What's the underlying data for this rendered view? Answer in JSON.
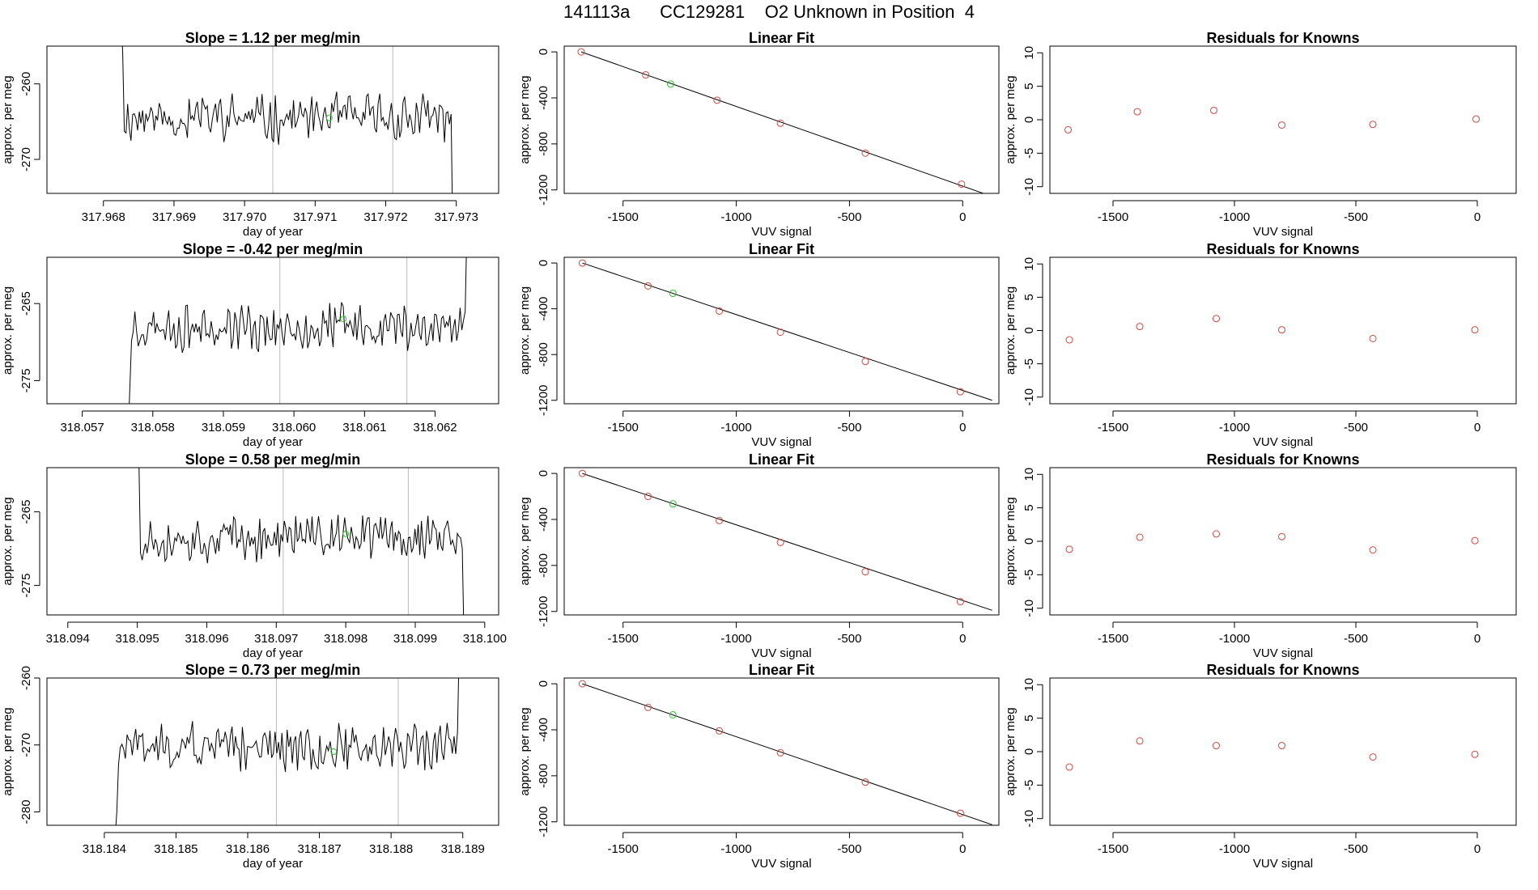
{
  "figure": {
    "title": "141113a      CC129281    O2 Unknown in Position  4"
  },
  "chart_data": [
    {
      "type": "line",
      "title": "Slope =  1.12  per meg/min",
      "xlabel": "day of year",
      "ylabel": "approx. per meg",
      "xlim": [
        317.9672,
        317.9736
      ],
      "ylim": [
        -274.5,
        -255
      ],
      "xticks": [
        317.968,
        317.969,
        317.97,
        317.971,
        317.972,
        317.973
      ],
      "xtick_labels": [
        "317.968",
        "317.969",
        "317.970",
        "317.971",
        "317.972",
        "317.973"
      ],
      "yticks": [
        -260,
        -270
      ],
      "ytick_labels": [
        "-260",
        "-270"
      ],
      "vlines": [
        317.9704,
        317.9721
      ],
      "x_start": 317.96825,
      "x_end": 317.97295,
      "level": -264.5,
      "lead": [
        -250,
        -256
      ],
      "tail": [
        -264,
        -280
      ],
      "green_point": [
        317.9712,
        -264.5
      ],
      "seed": 11
    },
    {
      "type": "line",
      "title": "Slope =  -0.42  per meg/min",
      "xlabel": "day of year",
      "ylabel": "approx. per meg",
      "xlim": [
        318.0565,
        318.0629
      ],
      "ylim": [
        -278,
        -259
      ],
      "xticks": [
        318.057,
        318.058,
        318.059,
        318.06,
        318.061,
        318.062
      ],
      "xtick_labels": [
        "318.057",
        "318.058",
        "318.059",
        "318.060",
        "318.061",
        "318.062"
      ],
      "yticks": [
        -265,
        -275
      ],
      "ytick_labels": [
        "-265",
        "-275"
      ],
      "vlines": [
        318.0598,
        318.0616
      ],
      "x_start": 318.05765,
      "x_end": 318.06245,
      "level": -268,
      "lead": [
        -282,
        -276
      ],
      "tail": [
        -266,
        -255
      ],
      "green_point": [
        318.0607,
        -267
      ],
      "seed": 23
    },
    {
      "type": "line",
      "title": "Slope =  0.58  per meg/min",
      "xlabel": "day of year",
      "ylabel": "approx. per meg",
      "xlim": [
        318.0937,
        318.1002
      ],
      "ylim": [
        -279,
        -259
      ],
      "xticks": [
        318.094,
        318.095,
        318.096,
        318.097,
        318.098,
        318.099,
        318.1
      ],
      "xtick_labels": [
        "318.094",
        "318.095",
        "318.096",
        "318.097",
        "318.098",
        "318.099",
        "318.100"
      ],
      "yticks": [
        -265,
        -275
      ],
      "ytick_labels": [
        "-265",
        "-275"
      ],
      "vlines": [
        318.0971,
        318.0989
      ],
      "x_start": 318.095,
      "x_end": 318.0997,
      "level": -268.5,
      "lead": [
        -252,
        -258
      ],
      "tail": [
        -270,
        -282
      ],
      "green_point": [
        318.098,
        -268
      ],
      "seed": 37
    },
    {
      "type": "line",
      "title": "Slope =  0.73  per meg/min",
      "xlabel": "day of year",
      "ylabel": "approx. per meg",
      "xlim": [
        318.1832,
        318.1895
      ],
      "ylim": [
        -282,
        -260
      ],
      "xticks": [
        318.184,
        318.185,
        318.186,
        318.187,
        318.188,
        318.189
      ],
      "xtick_labels": [
        "318.184",
        "318.185",
        "318.186",
        "318.187",
        "318.188",
        "318.189"
      ],
      "yticks": [
        -260,
        -270,
        -280
      ],
      "ytick_labels": [
        "-260",
        "-270",
        "-280"
      ],
      "vlines": [
        318.1864,
        318.1881
      ],
      "x_start": 318.18415,
      "x_end": 318.18895,
      "level": -270.5,
      "lead": [
        -284,
        -280
      ],
      "tail": [
        -268,
        -255
      ],
      "green_point": [
        318.1872,
        -271
      ],
      "seed": 51
    },
    {
      "type": "scatter",
      "title": "Linear Fit",
      "xlabel": "VUV signal",
      "ylabel": "approx. per meg",
      "xlim": [
        -1760,
        160
      ],
      "ylim": [
        -1230,
        50
      ],
      "xticks": [
        -1500,
        -1000,
        -500,
        0
      ],
      "xtick_labels": [
        "-1500",
        "-1000",
        "-500",
        "0"
      ],
      "yticks": [
        0,
        -400,
        -800,
        -1200
      ],
      "ytick_labels": [
        "0",
        "-400",
        "-800",
        "-1200"
      ],
      "red_points": [
        [
          -1685,
          0
        ],
        [
          -1400,
          -200
        ],
        [
          -1085,
          -420
        ],
        [
          -805,
          -620
        ],
        [
          -430,
          -880
        ],
        [
          -5,
          -1150
        ]
      ],
      "green_point": [
        -1290,
        -280
      ],
      "fit_line": [
        [
          -1685,
          0
        ],
        [
          120,
          -1250
        ]
      ]
    },
    {
      "type": "scatter",
      "title": "Linear Fit",
      "xlabel": "VUV signal",
      "ylabel": "approx. per meg",
      "xlim": [
        -1760,
        160
      ],
      "ylim": [
        -1230,
        50
      ],
      "xticks": [
        -1500,
        -1000,
        -500,
        0
      ],
      "xtick_labels": [
        "-1500",
        "-1000",
        "-500",
        "0"
      ],
      "yticks": [
        0,
        -400,
        -800,
        -1200
      ],
      "ytick_labels": [
        "0",
        "-400",
        "-800",
        "-1200"
      ],
      "red_points": [
        [
          -1680,
          0
        ],
        [
          -1390,
          -200
        ],
        [
          -1075,
          -420
        ],
        [
          -805,
          -605
        ],
        [
          -430,
          -860
        ],
        [
          -10,
          -1125
        ]
      ],
      "green_point": [
        -1280,
        -265
      ],
      "fit_line": [
        [
          -1680,
          0
        ],
        [
          130,
          -1200
        ]
      ]
    },
    {
      "type": "scatter",
      "title": "Linear Fit",
      "xlabel": "VUV signal",
      "ylabel": "approx. per meg",
      "xlim": [
        -1760,
        160
      ],
      "ylim": [
        -1230,
        50
      ],
      "xticks": [
        -1500,
        -1000,
        -500,
        0
      ],
      "xtick_labels": [
        "-1500",
        "-1000",
        "-500",
        "0"
      ],
      "yticks": [
        0,
        -400,
        -800,
        -1200
      ],
      "ytick_labels": [
        "0",
        "-400",
        "-800",
        "-1200"
      ],
      "red_points": [
        [
          -1680,
          0
        ],
        [
          -1390,
          -200
        ],
        [
          -1075,
          -410
        ],
        [
          -805,
          -600
        ],
        [
          -430,
          -855
        ],
        [
          -10,
          -1115
        ]
      ],
      "green_point": [
        -1280,
        -265
      ],
      "fit_line": [
        [
          -1680,
          0
        ],
        [
          130,
          -1190
        ]
      ]
    },
    {
      "type": "scatter",
      "title": "Linear Fit",
      "xlabel": "VUV signal",
      "ylabel": "approx. per meg",
      "xlim": [
        -1760,
        160
      ],
      "ylim": [
        -1230,
        50
      ],
      "xticks": [
        -1500,
        -1000,
        -500,
        0
      ],
      "xtick_labels": [
        "-1500",
        "-1000",
        "-500",
        "0"
      ],
      "yticks": [
        0,
        -400,
        -800,
        -1200
      ],
      "ytick_labels": [
        "0",
        "-400",
        "-800",
        "-1200"
      ],
      "red_points": [
        [
          -1680,
          0
        ],
        [
          -1390,
          -205
        ],
        [
          -1075,
          -410
        ],
        [
          -805,
          -600
        ],
        [
          -430,
          -855
        ],
        [
          -10,
          -1125
        ]
      ],
      "green_point": [
        -1280,
        -270
      ],
      "fit_line": [
        [
          -1680,
          0
        ],
        [
          130,
          -1225
        ]
      ]
    },
    {
      "type": "scatter",
      "title": "Residuals for Knowns",
      "xlabel": "VUV signal",
      "ylabel": "approx. per meg",
      "xlim": [
        -1760,
        160
      ],
      "ylim": [
        -11,
        11
      ],
      "xticks": [
        -1500,
        -1000,
        -500,
        0
      ],
      "xtick_labels": [
        "-1500",
        "-1000",
        "-500",
        "0"
      ],
      "yticks": [
        10,
        5,
        0,
        -5,
        -10
      ],
      "ytick_labels": [
        "10",
        "5",
        "0",
        "-5",
        "-10"
      ],
      "red_points": [
        [
          -1685,
          -1.5
        ],
        [
          -1400,
          1.2
        ],
        [
          -1085,
          1.4
        ],
        [
          -805,
          -0.8
        ],
        [
          -430,
          -0.7
        ],
        [
          -5,
          0.1
        ]
      ]
    },
    {
      "type": "scatter",
      "title": "Residuals for Knowns",
      "xlabel": "VUV signal",
      "ylabel": "approx. per meg",
      "xlim": [
        -1760,
        160
      ],
      "ylim": [
        -11,
        11
      ],
      "xticks": [
        -1500,
        -1000,
        -500,
        0
      ],
      "xtick_labels": [
        "-1500",
        "-1000",
        "-500",
        "0"
      ],
      "yticks": [
        10,
        5,
        0,
        -5,
        -10
      ],
      "ytick_labels": [
        "10",
        "5",
        "0",
        "-5",
        "-10"
      ],
      "red_points": [
        [
          -1680,
          -1.4
        ],
        [
          -1390,
          0.6
        ],
        [
          -1075,
          1.8
        ],
        [
          -805,
          0.1
        ],
        [
          -430,
          -1.2
        ],
        [
          -10,
          0.1
        ]
      ]
    },
    {
      "type": "scatter",
      "title": "Residuals for Knowns",
      "xlabel": "VUV signal",
      "ylabel": "approx. per meg",
      "xlim": [
        -1760,
        160
      ],
      "ylim": [
        -11,
        11
      ],
      "xticks": [
        -1500,
        -1000,
        -500,
        0
      ],
      "xtick_labels": [
        "-1500",
        "-1000",
        "-500",
        "0"
      ],
      "yticks": [
        10,
        5,
        0,
        -5,
        -10
      ],
      "ytick_labels": [
        "10",
        "5",
        "0",
        "-5",
        "-10"
      ],
      "red_points": [
        [
          -1680,
          -1.2
        ],
        [
          -1390,
          0.6
        ],
        [
          -1075,
          1.1
        ],
        [
          -805,
          0.7
        ],
        [
          -430,
          -1.3
        ],
        [
          -10,
          0.1
        ]
      ]
    },
    {
      "type": "scatter",
      "title": "Residuals for Knowns",
      "xlabel": "VUV signal",
      "ylabel": "approx. per meg",
      "xlim": [
        -1760,
        160
      ],
      "ylim": [
        -11,
        11
      ],
      "xticks": [
        -1500,
        -1000,
        -500,
        0
      ],
      "xtick_labels": [
        "-1500",
        "-1000",
        "-500",
        "0"
      ],
      "yticks": [
        10,
        5,
        0,
        -5,
        -10
      ],
      "ytick_labels": [
        "10",
        "5",
        "0",
        "-5",
        "-10"
      ],
      "red_points": [
        [
          -1680,
          -2.3
        ],
        [
          -1390,
          1.6
        ],
        [
          -1075,
          0.9
        ],
        [
          -805,
          0.9
        ],
        [
          -430,
          -0.8
        ],
        [
          -10,
          -0.4
        ]
      ]
    }
  ]
}
